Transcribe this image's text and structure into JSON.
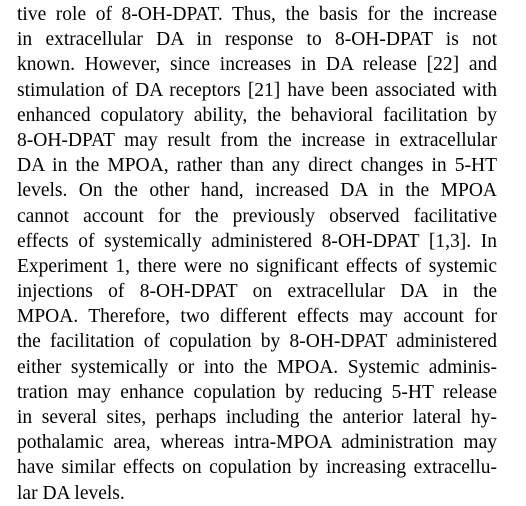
{
  "paragraph": {
    "lines": [
      "tive role of 8-OH-DPAT. Thus, the basis for the increase",
      "in extracellular DA in response to 8-OH-DPAT is not",
      "known. However, since increases in DA release [22] and",
      "stimulation of DA receptors [21] have been associated with",
      "enhanced copulatory ability, the behavioral facilitation by",
      "8-OH-DPAT may result from the increase in extracellular",
      "DA in the MPOA, rather than any direct changes in 5-HT",
      "levels. On the other hand, increased DA in the MPOA",
      "cannot account for the previously observed facilitative",
      "effects of systemically administered 8-OH-DPAT [1,3]. In",
      "Experiment 1, there were no significant effects of systemic",
      "injections of 8-OH-DPAT on extracellular DA in the",
      "MPOA. Therefore, two different effects may account for",
      "the facilitation of copulation by 8-OH-DPAT administered",
      "either systemically or into the MPOA. Systemic adminis-",
      "tration may enhance copulation by reducing 5-HT release",
      "in several sites, perhaps including the anterior lateral hy-",
      "pothalamic area, whereas intra-MPOA administration may",
      "have similar effects on copulation by increasing extracellu-",
      "lar DA levels."
    ]
  }
}
